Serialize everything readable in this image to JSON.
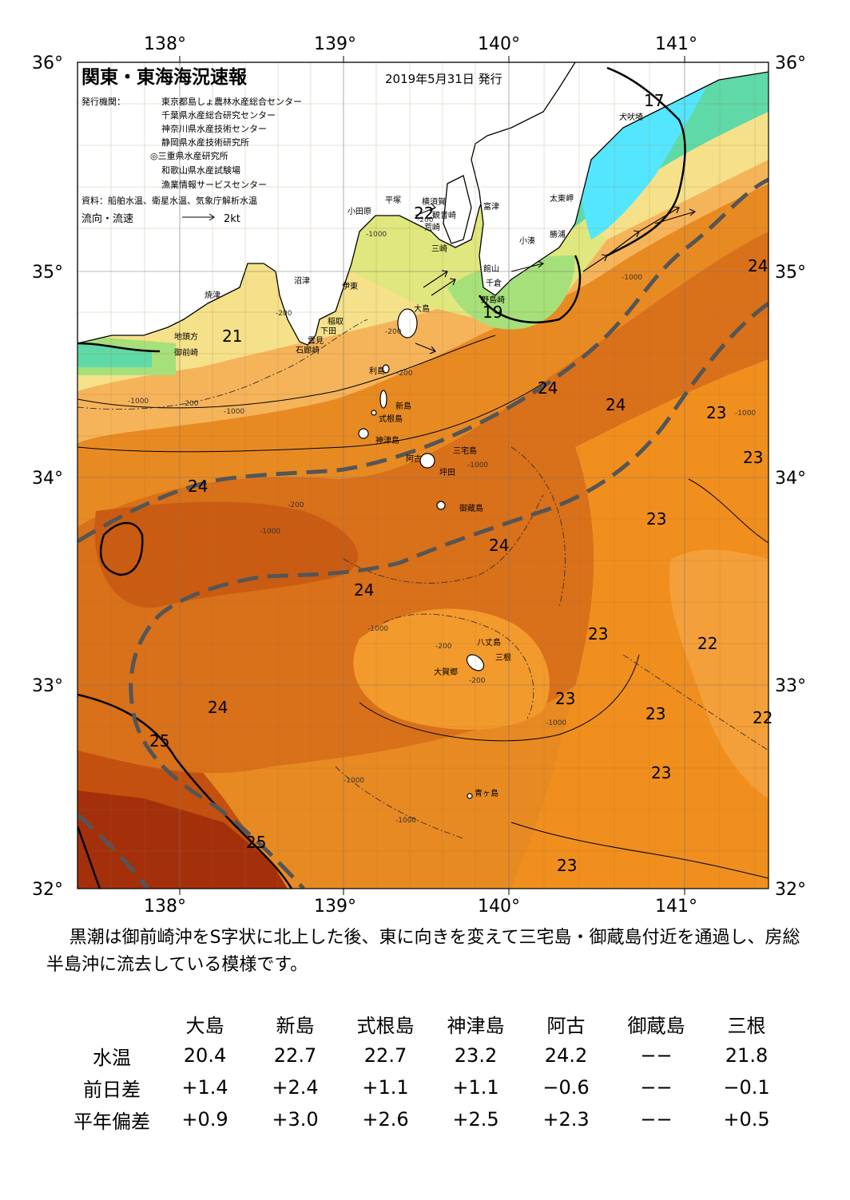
{
  "map": {
    "title": "関東・東海海況速報",
    "date": "2019年5月31日 発行",
    "publisher_label": "発行機関：",
    "publishers": [
      "東京都島しょ農林水産総合センター",
      "千葉県水産総合研究センター",
      "神奈川県水産技術センター",
      "静岡県水産技術研究所",
      "◎三重県水産研究所",
      "和歌山県水産試験場",
      "漁業情報サービスセンター"
    ],
    "source": "資料：船舶水温、衛星水温、気象庁解析水温",
    "legend_current": "流向・流速",
    "legend_speed": "2kt",
    "lon_labels": [
      "138°",
      "139°",
      "140°",
      "141°"
    ],
    "lat_labels": [
      "36°",
      "35°",
      "34°",
      "33°",
      "32°"
    ],
    "place_names": {
      "odawara": "小田原",
      "hiratsuka": "平塚",
      "yokosuka": "横須賀",
      "kannonzaki": "観音崎",
      "arasaki": "荒崎",
      "futtsu": "富津",
      "inubozaki": "犬吠埼",
      "taitomisaki": "太東岬",
      "katsuura": "勝浦",
      "kominato": "小湊",
      "mitosaki": "三崎",
      "tateyama": "館山",
      "chikura": "千倉",
      "nojimazaki": "野島崎",
      "numazu": "沼津",
      "ito": "伊東",
      "yaizu": "焼津",
      "inatori": "稲取",
      "shimoda": "下田",
      "mikomoto": "雲見",
      "irozaki": "石廊崎",
      "jitokata": "地頭方",
      "omaezaki": "御前崎",
      "oshima": "大島",
      "toshima": "利島",
      "niijima": "新島",
      "shikinejima": "式根島",
      "kozushima": "神津島",
      "miyakejima": "三宅島",
      "ako": "阿古",
      "tsubota": "坪田",
      "mikurajima": "御蔵島",
      "hachijojima": "八丈島",
      "mitsune": "三根",
      "okago": "大賀郷",
      "aogashima": "青ヶ島"
    },
    "temperature_labels": [
      "17",
      "22",
      "24",
      "19",
      "21",
      "24",
      "24",
      "23",
      "23",
      "24",
      "23",
      "24",
      "24",
      "23",
      "22",
      "24",
      "23",
      "22",
      "25",
      "23",
      "23",
      "25",
      "23"
    ],
    "depth_labels": [
      "-1000",
      "-200",
      "-200",
      "-200",
      "-1000",
      "-200",
      "-1000",
      "-200",
      "-1000",
      "-200",
      "-1000",
      "-1000",
      "-1000",
      "-200",
      "-1000",
      "-1000",
      "-1000",
      "-200",
      "-1000"
    ]
  },
  "description": "黒潮は御前崎沖をS字状に北上した後、東に向きを変えて三宅島・御蔵島付近を通過し、房総半島沖に流去している模様です。",
  "table": {
    "columns": [
      "大島",
      "新島",
      "式根島",
      "神津島",
      "阿古",
      "御蔵島",
      "三根"
    ],
    "rows": [
      {
        "label": "水温",
        "values": [
          "20.4",
          "22.7",
          "22.7",
          "23.2",
          "24.2",
          "−−",
          "21.8"
        ]
      },
      {
        "label": "前日差",
        "values": [
          "+1.4",
          "+2.4",
          "+1.1",
          "+1.1",
          "−0.6",
          "−−",
          "−0.1"
        ]
      },
      {
        "label": "平年偏差",
        "values": [
          "+0.9",
          "+3.0",
          "+2.6",
          "+2.5",
          "+2.3",
          "−−",
          "+0.5"
        ]
      }
    ]
  },
  "colors": {
    "land": "#ffffff",
    "temp_17": "#55e6ff",
    "temp_18": "#5fd9a8",
    "temp_19": "#a6e07a",
    "temp_20": "#dfe77e",
    "temp_21": "#f5e18a",
    "temp_22": "#f6b45a",
    "temp_23": "#f49a2a",
    "temp_24": "#e07a14",
    "temp_25": "#c4500f",
    "temp_26": "#a3300b",
    "kuroshio_axis": "#555555"
  }
}
